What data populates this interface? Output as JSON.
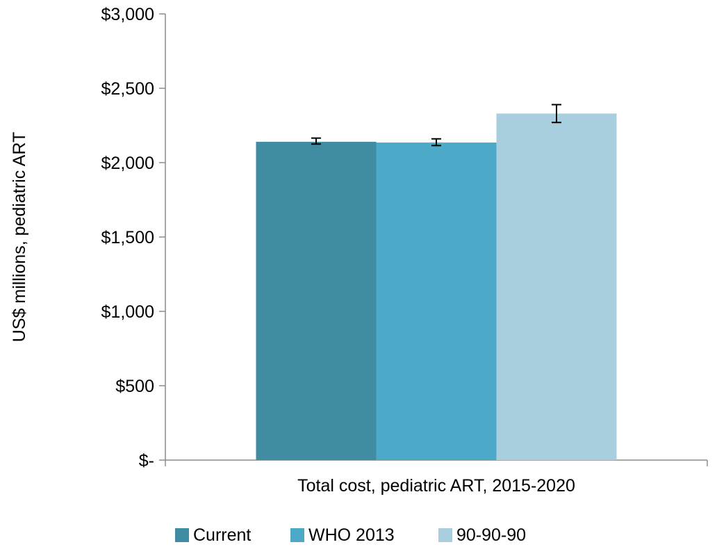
{
  "chart_data": {
    "type": "bar",
    "categories": [
      "Total cost, pediatric ART, 2015-2020"
    ],
    "series": [
      {
        "name": "Current",
        "values": [
          2140
        ],
        "error_low": [
          2125
        ],
        "error_high": [
          2165
        ],
        "color": "#3F8CA3"
      },
      {
        "name": "WHO 2013",
        "values": [
          2135
        ],
        "error_low": [
          2115
        ],
        "error_high": [
          2160
        ],
        "color": "#4CA9C7"
      },
      {
        "name": "90-90-90",
        "values": [
          2330
        ],
        "error_low": [
          2270
        ],
        "error_high": [
          2390
        ],
        "color": "#A9CEDD"
      }
    ],
    "ylabel": "US$ millions, pediatric ART",
    "ylim": [
      0,
      3000
    ],
    "yticks": [
      0,
      500,
      1000,
      1500,
      2000,
      2500,
      3000
    ],
    "ytick_labels": [
      "$-",
      "$500",
      "$1,000",
      "$1,500",
      "$2,000",
      "$2,500",
      "$3,000"
    ],
    "grid": false,
    "legend_position": "bottom"
  }
}
